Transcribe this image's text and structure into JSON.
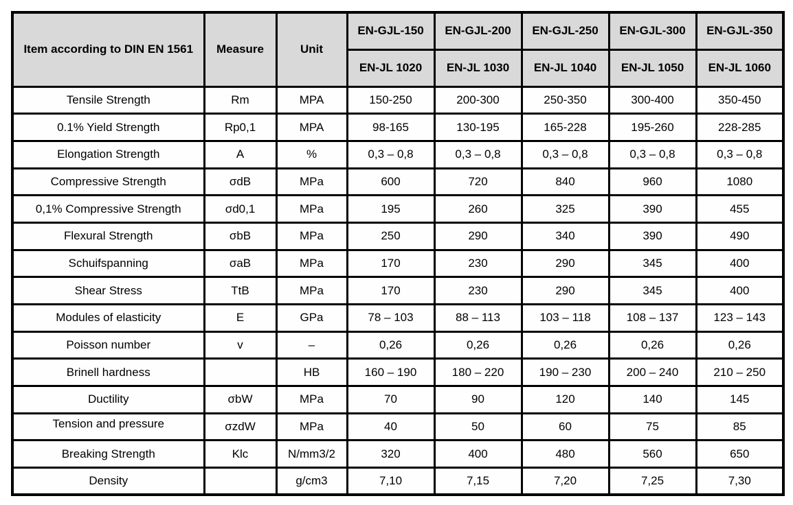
{
  "table": {
    "header": {
      "item_label": "Item according to DIN EN 1561",
      "measure_label": "Measure",
      "unit_label": "Unit",
      "grades": [
        {
          "name": "EN-GJL-150",
          "code": "EN-JL 1020"
        },
        {
          "name": "EN-GJL-200",
          "code": "EN-JL 1030"
        },
        {
          "name": "EN-GJL-250",
          "code": "EN-JL 1040"
        },
        {
          "name": "EN-GJL-300",
          "code": "EN-JL 1050"
        },
        {
          "name": "EN-GJL-350",
          "code": "EN-JL 1060"
        }
      ]
    },
    "rows": [
      {
        "item": "Tensile Strength",
        "measure": "Rm",
        "unit": "MPA",
        "values": [
          "150-250",
          "200-300",
          "250-350",
          "300-400",
          "350-450"
        ]
      },
      {
        "item": "0.1% Yield Strength",
        "measure": "Rp0,1",
        "unit": "MPA",
        "values": [
          "98-165",
          "130-195",
          "165-228",
          "195-260",
          "228-285"
        ]
      },
      {
        "item": "Elongation Strength",
        "measure": "A",
        "unit": "%",
        "values": [
          "0,3 – 0,8",
          "0,3 – 0,8",
          "0,3 – 0,8",
          "0,3 – 0,8",
          "0,3 – 0,8"
        ]
      },
      {
        "item": "Compressive Strength",
        "measure": "σdB",
        "unit": "MPa",
        "values": [
          "600",
          "720",
          "840",
          "960",
          "1080"
        ]
      },
      {
        "item": "0,1% Compressive Strength",
        "measure": "σd0,1",
        "unit": "MPa",
        "values": [
          "195",
          "260",
          "325",
          "390",
          "455"
        ]
      },
      {
        "item": "Flexural Strength",
        "measure": "σbB",
        "unit": "MPa",
        "values": [
          "250",
          "290",
          "340",
          "390",
          "490"
        ]
      },
      {
        "item": "Schuifspanning",
        "measure": "σaB",
        "unit": "MPa",
        "values": [
          "170",
          "230",
          "290",
          "345",
          "400"
        ]
      },
      {
        "item": "Shear Stress",
        "measure": "TtB",
        "unit": "MPa",
        "values": [
          "170",
          "230",
          "290",
          "345",
          "400"
        ]
      },
      {
        "item": "Modules of elasticity",
        "measure": "E",
        "unit": "GPa",
        "values": [
          "78 – 103",
          "88 – 113",
          "103 – 118",
          "108 – 137",
          "123 – 143"
        ]
      },
      {
        "item": "Poisson number",
        "measure": "v",
        "unit": "–",
        "values": [
          "0,26",
          "0,26",
          "0,26",
          "0,26",
          "0,26"
        ]
      },
      {
        "item": "Brinell hardness",
        "measure": "",
        "unit": "HB",
        "values": [
          "160 – 190",
          "180 – 220",
          "190 – 230",
          "200 – 240",
          "210 – 250"
        ]
      },
      {
        "item": "Ductility",
        "measure": "σbW",
        "unit": "MPa",
        "values": [
          "70",
          "90",
          "120",
          "140",
          "145"
        ]
      },
      {
        "item": "Tension and pressure",
        "measure": "σzdW",
        "unit": "MPa",
        "values": [
          "40",
          "50",
          "60",
          "75",
          "85"
        ]
      },
      {
        "item": "Breaking Strength",
        "measure": "Klc",
        "unit": "N/mm3/2",
        "values": [
          "320",
          "400",
          "480",
          "560",
          "650"
        ]
      },
      {
        "item": "Density",
        "measure": "",
        "unit": "g/cm3",
        "values": [
          "7,10",
          "7,15",
          "7,20",
          "7,25",
          "7,30"
        ]
      }
    ],
    "colors": {
      "header_bg": "#d9d9d9",
      "border": "#000000",
      "row_bg": "#ffffff",
      "text": "#000000"
    }
  },
  "chart_data": {
    "type": "table",
    "title": "Item according to DIN EN 1561",
    "columns": [
      "Item according to DIN EN 1561",
      "Measure",
      "Unit",
      "EN-GJL-150 / EN-JL 1020",
      "EN-GJL-200 / EN-JL 1030",
      "EN-GJL-250 / EN-JL 1040",
      "EN-GJL-300 / EN-JL 1050",
      "EN-GJL-350 / EN-JL 1060"
    ],
    "rows": [
      [
        "Tensile Strength",
        "Rm",
        "MPA",
        "150-250",
        "200-300",
        "250-350",
        "300-400",
        "350-450"
      ],
      [
        "0.1% Yield Strength",
        "Rp0,1",
        "MPA",
        "98-165",
        "130-195",
        "165-228",
        "195-260",
        "228-285"
      ],
      [
        "Elongation Strength",
        "A",
        "%",
        "0,3 – 0,8",
        "0,3 – 0,8",
        "0,3 – 0,8",
        "0,3 – 0,8",
        "0,3 – 0,8"
      ],
      [
        "Compressive Strength",
        "σdB",
        "MPa",
        "600",
        "720",
        "840",
        "960",
        "1080"
      ],
      [
        "0,1% Compressive Strength",
        "σd0,1",
        "MPa",
        "195",
        "260",
        "325",
        "390",
        "455"
      ],
      [
        "Flexural Strength",
        "σbB",
        "MPa",
        "250",
        "290",
        "340",
        "390",
        "490"
      ],
      [
        "Schuifspanning",
        "σaB",
        "MPa",
        "170",
        "230",
        "290",
        "345",
        "400"
      ],
      [
        "Shear Stress",
        "TtB",
        "MPa",
        "170",
        "230",
        "290",
        "345",
        "400"
      ],
      [
        "Modules of elasticity",
        "E",
        "GPa",
        "78 – 103",
        "88 – 113",
        "103 – 118",
        "108 – 137",
        "123 – 143"
      ],
      [
        "Poisson number",
        "v",
        "–",
        "0,26",
        "0,26",
        "0,26",
        "0,26",
        "0,26"
      ],
      [
        "Brinell hardness",
        "",
        "HB",
        "160 – 190",
        "180 – 220",
        "190 – 230",
        "200 – 240",
        "210 – 250"
      ],
      [
        "Ductility",
        "σbW",
        "MPa",
        "70",
        "90",
        "120",
        "140",
        "145"
      ],
      [
        "Tension and pressure",
        "σzdW",
        "MPa",
        "40",
        "50",
        "60",
        "75",
        "85"
      ],
      [
        "Breaking Strength",
        "Klc",
        "N/mm3/2",
        "320",
        "400",
        "480",
        "560",
        "650"
      ],
      [
        "Density",
        "",
        "g/cm3",
        "7,10",
        "7,15",
        "7,20",
        "7,25",
        "7,30"
      ]
    ]
  }
}
